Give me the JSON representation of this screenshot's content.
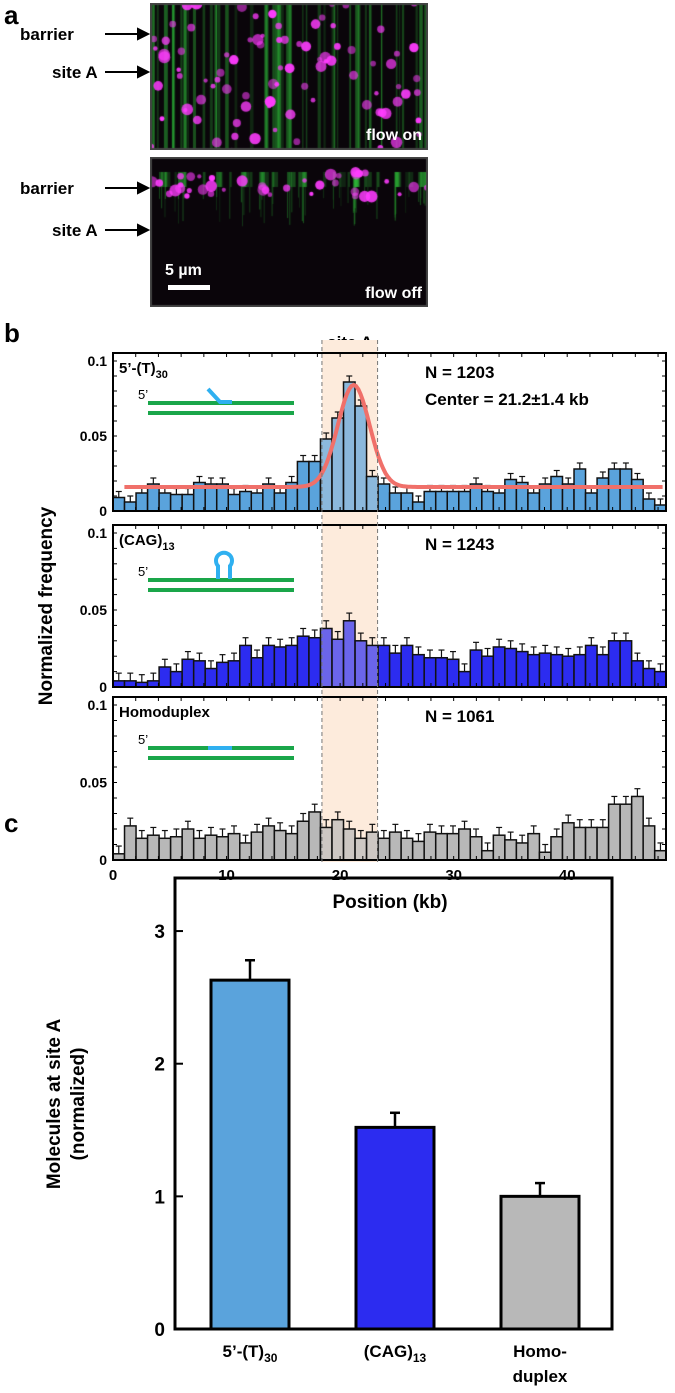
{
  "panel_a": {
    "label": "a",
    "top_image": {
      "barrier_label": "barrier",
      "site_label": "site A",
      "condition": "flow on"
    },
    "bottom_image": {
      "barrier_label": "barrier",
      "site_label": "site A",
      "condition": "flow off",
      "scale_bar": "5 µm"
    },
    "colors": {
      "dna": "#2fbf3a",
      "protein": "#ff33ff",
      "background": "#0a050a"
    }
  },
  "panel_b": {
    "label": "b",
    "site_label": "site A",
    "ylabel": "Normalized frequency",
    "xlabel": "Position (kb)",
    "yticks": [
      "0",
      "0.05",
      "0.1"
    ],
    "xticks": [
      "0",
      "10",
      "20",
      "30",
      "40"
    ]
  },
  "panel_c": {
    "label": "c"
  },
  "chart_data": [
    {
      "type": "bar",
      "panel": "b-top",
      "annotation_label": "5’-(T)",
      "annotation_sub": "30",
      "n_label": "N = 1203",
      "center_label": "Center = 21.2±1.4 kb",
      "color": "#5aa3dc",
      "bin_width_kb": 1.015,
      "xlim": [
        0,
        48.7
      ],
      "ylim": [
        0,
        0.1
      ],
      "values": [
        0.009,
        0.006,
        0.012,
        0.018,
        0.012,
        0.011,
        0.011,
        0.019,
        0.018,
        0.018,
        0.011,
        0.013,
        0.012,
        0.018,
        0.012,
        0.019,
        0.033,
        0.033,
        0.048,
        0.062,
        0.086,
        0.07,
        0.023,
        0.018,
        0.012,
        0.012,
        0.006,
        0.013,
        0.013,
        0.013,
        0.013,
        0.018,
        0.013,
        0.012,
        0.021,
        0.019,
        0.012,
        0.018,
        0.023,
        0.018,
        0.028,
        0.012,
        0.022,
        0.028,
        0.028,
        0.021,
        0.008,
        0.004
      ],
      "error": 0.004,
      "fit": {
        "type": "gaussian",
        "baseline": 0.016,
        "amplitude": 0.068,
        "center": 21.2,
        "sigma": 1.4,
        "color": "#f0706a"
      }
    },
    {
      "type": "bar",
      "panel": "b-middle",
      "annotation_label": "(CAG)",
      "annotation_sub": "13",
      "n_label": "N = 1243",
      "color": "#2c2cf0",
      "bin_width_kb": 1.015,
      "xlim": [
        0,
        48.7
      ],
      "ylim": [
        0,
        0.1
      ],
      "values": [
        0.004,
        0.004,
        0.003,
        0.004,
        0.013,
        0.01,
        0.018,
        0.017,
        0.012,
        0.016,
        0.017,
        0.027,
        0.019,
        0.027,
        0.026,
        0.027,
        0.033,
        0.032,
        0.038,
        0.031,
        0.043,
        0.03,
        0.027,
        0.027,
        0.022,
        0.027,
        0.021,
        0.019,
        0.019,
        0.018,
        0.01,
        0.024,
        0.02,
        0.026,
        0.025,
        0.023,
        0.021,
        0.022,
        0.021,
        0.02,
        0.021,
        0.027,
        0.021,
        0.03,
        0.03,
        0.017,
        0.012,
        0.01
      ],
      "error": 0.005
    },
    {
      "type": "bar",
      "panel": "b-bottom",
      "annotation_label": "Homoduplex",
      "n_label": "N = 1061",
      "color": "#b8b8b8",
      "bin_width_kb": 1.015,
      "xlim": [
        0,
        48.7
      ],
      "ylim": [
        0,
        0.1
      ],
      "values": [
        0.004,
        0.022,
        0.014,
        0.016,
        0.014,
        0.015,
        0.02,
        0.014,
        0.016,
        0.015,
        0.017,
        0.011,
        0.018,
        0.022,
        0.019,
        0.017,
        0.025,
        0.031,
        0.021,
        0.026,
        0.02,
        0.014,
        0.018,
        0.014,
        0.018,
        0.014,
        0.012,
        0.018,
        0.017,
        0.017,
        0.02,
        0.015,
        0.006,
        0.016,
        0.013,
        0.011,
        0.017,
        0.005,
        0.015,
        0.024,
        0.021,
        0.021,
        0.021,
        0.036,
        0.036,
        0.041,
        0.022,
        0.006
      ],
      "error": 0.005
    },
    {
      "type": "bar",
      "panel": "c",
      "ylabel_line1": "Molecules at site A",
      "ylabel_line2": "(normalized)",
      "ylim": [
        0,
        3.4
      ],
      "yticks": [
        "0",
        "1",
        "2",
        "3"
      ],
      "categories": [
        {
          "label": "5’-(T)",
          "sub": "30",
          "label2": ""
        },
        {
          "label": "(CAG)",
          "sub": "13",
          "label2": ""
        },
        {
          "label": "Homo-",
          "sub": "",
          "label2": "duplex"
        }
      ],
      "values": [
        2.63,
        1.52,
        1.0
      ],
      "errors": [
        0.15,
        0.11,
        0.1
      ],
      "colors": [
        "#5aa3dc",
        "#2c2cf0",
        "#b8b8b8"
      ]
    }
  ]
}
